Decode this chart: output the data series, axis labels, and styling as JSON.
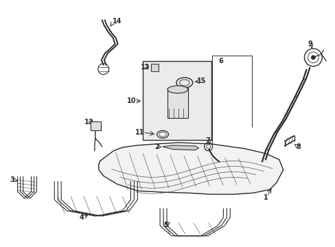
{
  "background_color": "#ffffff",
  "line_color": "#2a2a2a",
  "label_fontsize": 7,
  "figsize": [
    4.89,
    3.6
  ],
  "dpi": 100
}
